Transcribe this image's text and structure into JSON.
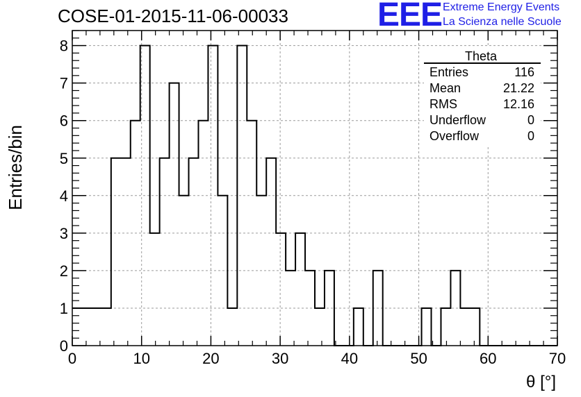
{
  "header": {
    "title": "COSE-01-2015-11-06-00033",
    "logo_text": "EEE",
    "logo_line1": "Extreme Energy Events",
    "logo_line2": "La Scienza nelle Scuole",
    "logo_color": "#1f1fe6"
  },
  "stats_box": {
    "name": "Theta",
    "rows": [
      {
        "label": "Entries",
        "value": "116"
      },
      {
        "label": "Mean",
        "value": "21.22"
      },
      {
        "label": "RMS",
        "value": "12.16"
      },
      {
        "label": "Underflow",
        "value": "0"
      },
      {
        "label": "Overflow",
        "value": "0"
      }
    ]
  },
  "chart_data": {
    "type": "bar",
    "style": "step-histogram",
    "xlabel": "θ [°]",
    "ylabel": "Entries/bin",
    "xlim": [
      0,
      70
    ],
    "ylim": [
      0,
      8.4
    ],
    "bin_width": 1.4,
    "x_ticks": [
      "0",
      "10",
      "20",
      "30",
      "40",
      "50",
      "60",
      "70"
    ],
    "y_ticks": [
      "0",
      "1",
      "2",
      "3",
      "4",
      "5",
      "6",
      "7",
      "8"
    ],
    "grid": true,
    "values": [
      1,
      1,
      1,
      1,
      5,
      5,
      6,
      8,
      3,
      5,
      7,
      4,
      5,
      6,
      8,
      4,
      1,
      8,
      6,
      4,
      5,
      3,
      2,
      3,
      2,
      1,
      2,
      0,
      0,
      1,
      0,
      2,
      0,
      0,
      0,
      0,
      1,
      0,
      1,
      2,
      1,
      1,
      0,
      0,
      0,
      0,
      0,
      0,
      0,
      0
    ]
  }
}
